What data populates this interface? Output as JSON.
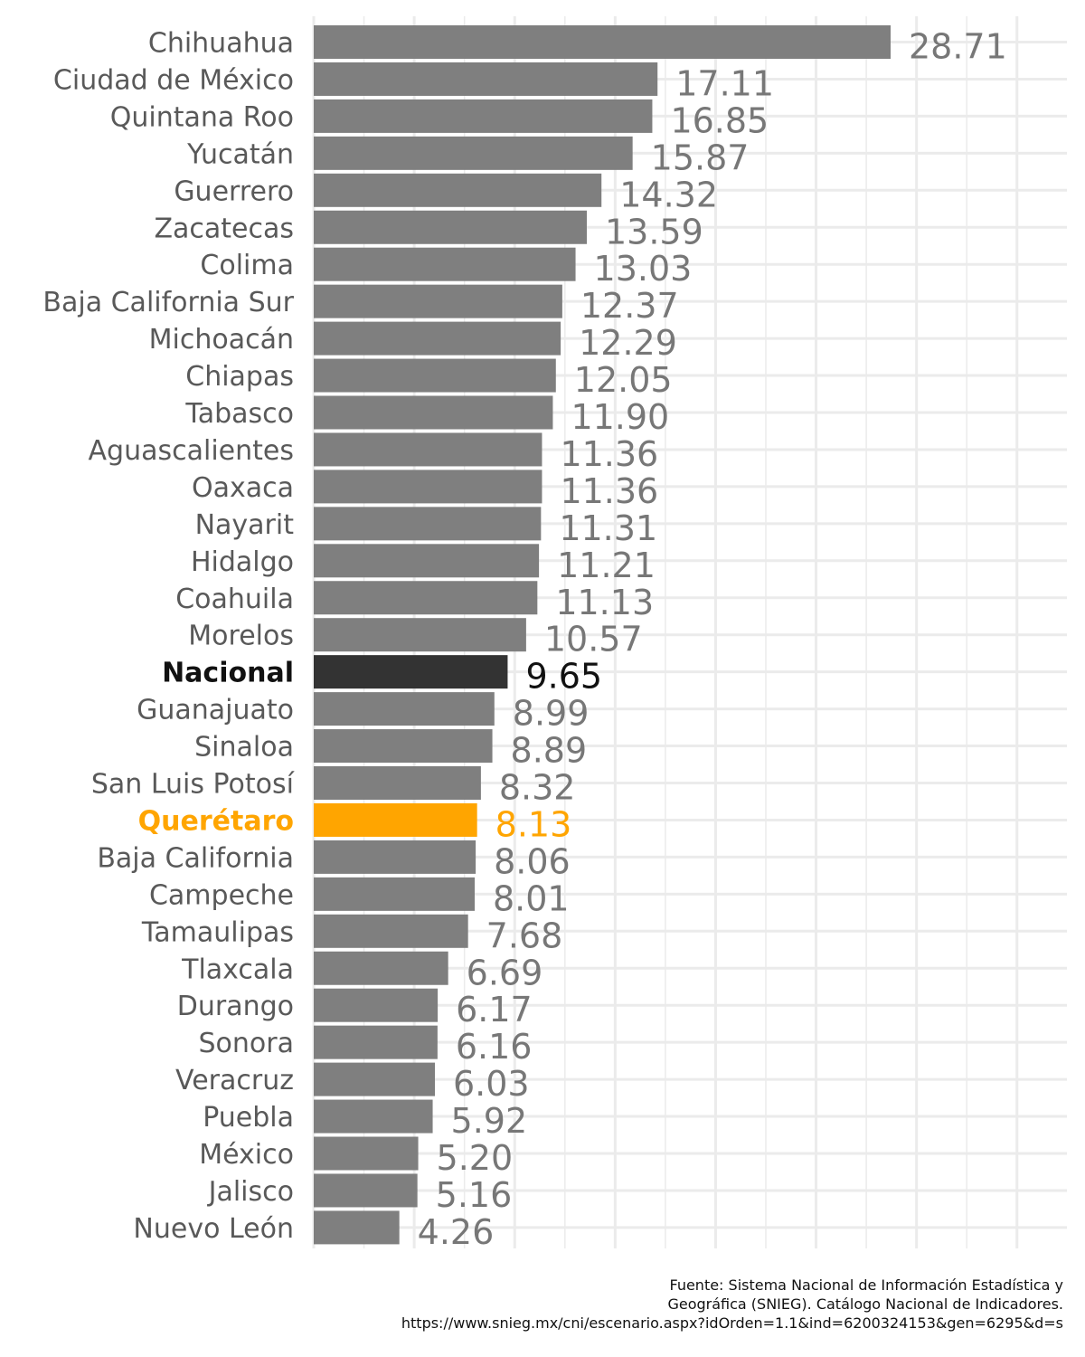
{
  "chart_data": {
    "type": "bar",
    "orientation": "horizontal",
    "categories": [
      "Chihuahua",
      "Ciudad de México",
      "Quintana Roo",
      "Yucatán",
      "Guerrero",
      "Zacatecas",
      "Colima",
      "Baja California Sur",
      "Michoacán",
      "Chiapas",
      "Tabasco",
      "Aguascalientes",
      "Oaxaca",
      "Nayarit",
      "Hidalgo",
      "Coahuila",
      "Morelos",
      "Nacional",
      "Guanajuato",
      "Sinaloa",
      "San Luis Potosí",
      "Querétaro",
      "Baja California",
      "Campeche",
      "Tamaulipas",
      "Tlaxcala",
      "Durango",
      "Sonora",
      "Veracruz",
      "Puebla",
      "México",
      "Jalisco",
      "Nuevo León"
    ],
    "values": [
      28.71,
      17.11,
      16.85,
      15.87,
      14.32,
      13.59,
      13.03,
      12.37,
      12.29,
      12.05,
      11.9,
      11.36,
      11.36,
      11.31,
      11.21,
      11.13,
      10.57,
      9.65,
      8.99,
      8.89,
      8.32,
      8.13,
      8.06,
      8.01,
      7.68,
      6.69,
      6.17,
      6.16,
      6.03,
      5.92,
      5.2,
      5.16,
      4.26
    ],
    "value_labels": [
      "28.71",
      "17.11",
      "16.85",
      "15.87",
      "14.32",
      "13.59",
      "13.03",
      "12.37",
      "12.29",
      "12.05",
      "11.90",
      "11.36",
      "11.36",
      "11.31",
      "11.21",
      "11.13",
      "10.57",
      "9.65",
      "8.99",
      "8.89",
      "8.32",
      "8.13",
      "8.06",
      "8.01",
      "7.68",
      "6.69",
      "6.17",
      "6.16",
      "6.03",
      "5.92",
      "5.20",
      "5.16",
      "4.26"
    ],
    "highlights": {
      "Nacional": "national",
      "Querétaro": "state"
    },
    "colors": {
      "default_bar": "#7f7f7f",
      "default_label": "#595959",
      "default_value": "#777777",
      "national": "#333333",
      "national_text": "#111111",
      "state": "#ffa500",
      "grid": "#ebebeb"
    },
    "xlim": [
      0,
      35
    ],
    "grid": true,
    "title": "",
    "xlabel": "",
    "ylabel": ""
  },
  "caption": {
    "lines": [
      "Fuente: Sistema Nacional de Información Estadística y",
      "Geográfica (SNIEG). Catálogo Nacional de Indicadores.",
      "https://www.snieg.mx/cni/escenario.aspx?idOrden=1.1&ind=6200324153&gen=6295&d=s"
    ]
  }
}
